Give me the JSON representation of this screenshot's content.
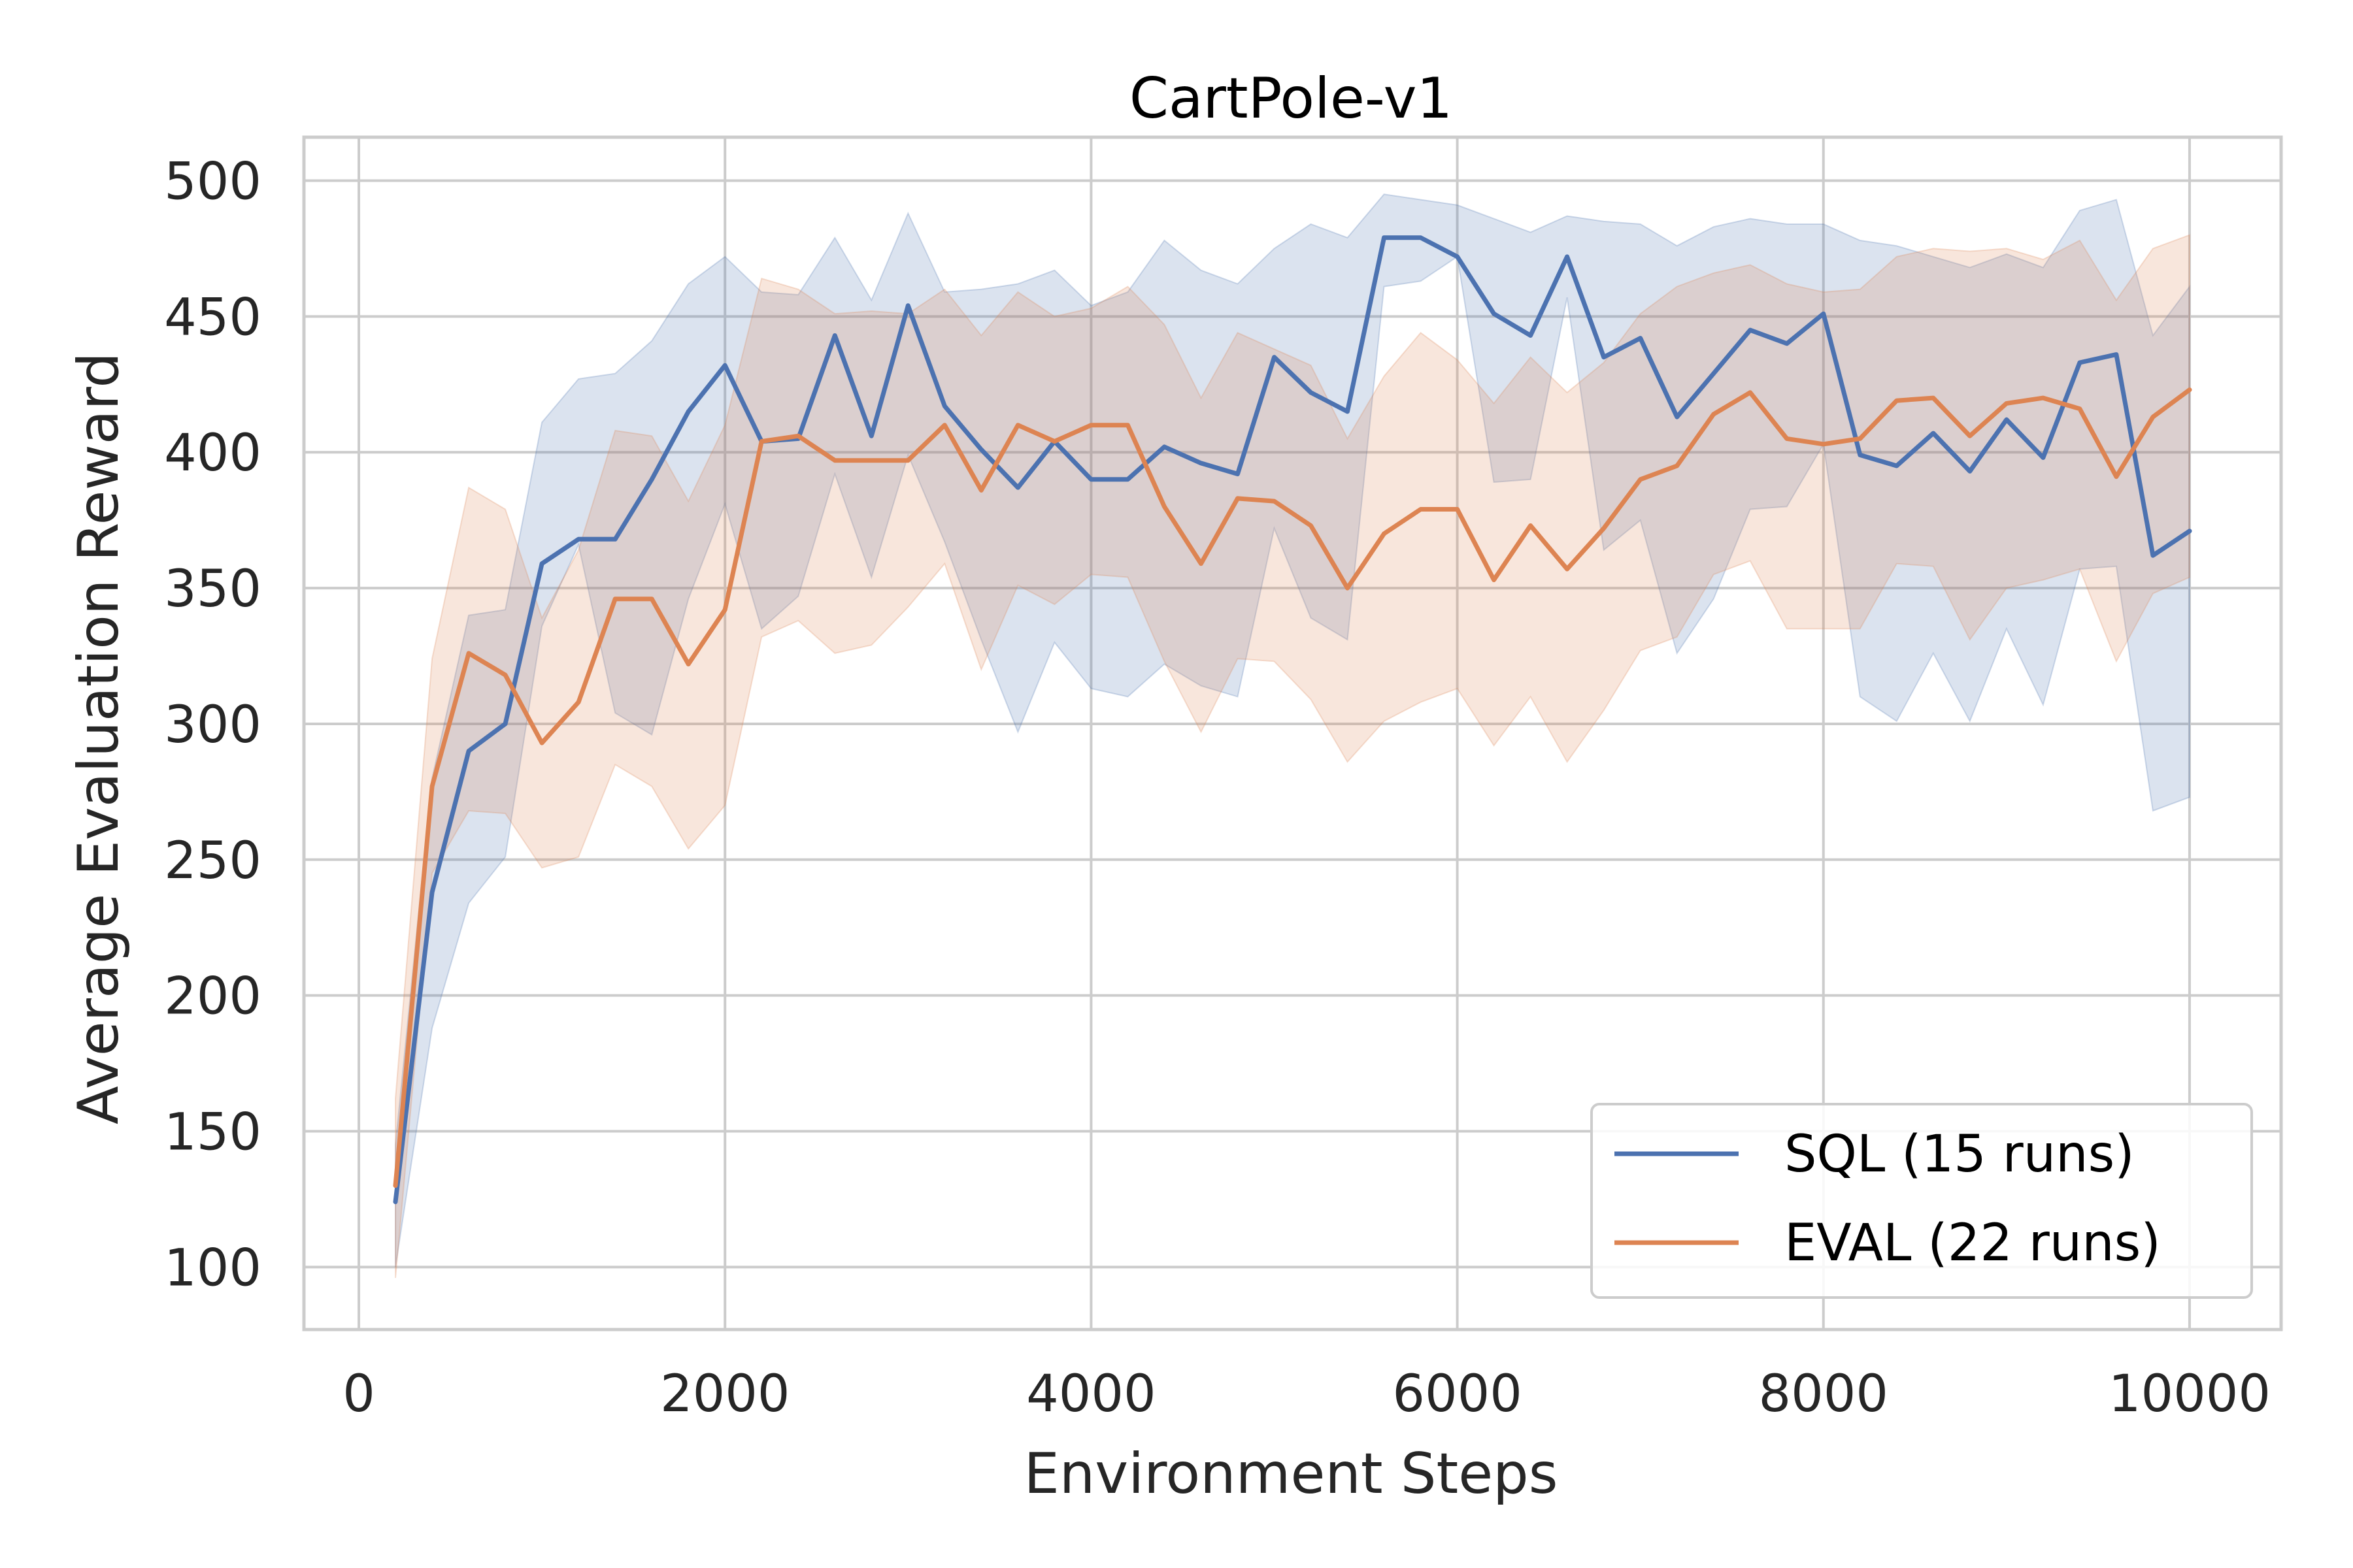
{
  "chart_data": {
    "type": "line",
    "title": "CartPole-v1",
    "xlabel": "Environment Steps",
    "ylabel": "Average Evaluation Reward",
    "xlim": [
      -300,
      10500
    ],
    "ylim": [
      77,
      516
    ],
    "xticks": [
      0,
      2000,
      4000,
      6000,
      8000,
      10000
    ],
    "yticks": [
      100,
      150,
      200,
      250,
      300,
      350,
      400,
      450,
      500
    ],
    "grid": true,
    "legend_position": "lower-right",
    "x": [
      200,
      400,
      600,
      800,
      1000,
      1200,
      1400,
      1600,
      1800,
      2000,
      2200,
      2400,
      2600,
      2800,
      3000,
      3200,
      3400,
      3600,
      3800,
      4000,
      4200,
      4400,
      4600,
      4800,
      5000,
      5200,
      5400,
      5600,
      5800,
      6000,
      6200,
      6400,
      6600,
      6800,
      7000,
      7200,
      7400,
      7600,
      7800,
      8000,
      8200,
      8400,
      8600,
      8800,
      9000,
      9200,
      9400,
      9600,
      9800,
      10000
    ],
    "series": [
      {
        "name": "SQL (15 runs)",
        "color": "#4c72b0",
        "values": [
          124,
          238,
          290,
          300,
          359,
          368,
          368,
          390,
          415,
          432,
          404,
          405,
          443,
          406,
          454,
          417,
          401,
          387,
          404,
          390,
          390,
          402,
          396,
          392,
          435,
          422,
          415,
          479,
          479,
          472,
          451,
          443,
          472,
          435,
          442,
          413,
          429,
          445,
          440,
          451,
          399,
          395,
          407,
          393,
          412,
          398,
          433,
          436,
          362,
          371
        ],
        "lower": [
          100,
          188,
          234,
          251,
          336,
          366,
          304,
          296,
          346,
          381,
          335,
          347,
          392,
          354,
          399,
          367,
          331,
          297,
          330,
          313,
          310,
          322,
          314,
          310,
          372,
          339,
          331,
          461,
          463,
          472,
          389,
          390,
          457,
          364,
          375,
          326,
          346,
          379,
          380,
          403,
          310,
          301,
          326,
          301,
          335,
          307,
          357,
          358,
          268,
          273
        ],
        "upper": [
          145,
          280,
          340,
          342,
          411,
          427,
          429,
          441,
          462,
          472,
          459,
          458,
          479,
          456,
          488,
          459,
          460,
          462,
          467,
          454,
          459,
          478,
          467,
          462,
          475,
          484,
          479,
          495,
          493,
          491,
          486,
          481,
          487,
          485,
          484,
          476,
          483,
          486,
          484,
          484,
          478,
          476,
          472,
          468,
          473,
          468,
          489,
          493,
          443,
          461
        ]
      },
      {
        "name": "EVAL (22 runs)",
        "color": "#dd8452",
        "values": [
          130,
          277,
          326,
          318,
          293,
          308,
          346,
          346,
          322,
          342,
          404,
          406,
          397,
          397,
          397,
          410,
          386,
          410,
          404,
          410,
          410,
          380,
          359,
          383,
          382,
          373,
          350,
          370,
          379,
          379,
          353,
          373,
          357,
          372,
          390,
          395,
          414,
          422,
          405,
          403,
          405,
          419,
          420,
          406,
          418,
          420,
          416,
          391,
          413,
          423
        ],
        "lower": [
          96,
          245,
          268,
          267,
          247,
          251,
          285,
          277,
          254,
          270,
          332,
          338,
          326,
          329,
          343,
          359,
          320,
          351,
          344,
          355,
          354,
          323,
          297,
          324,
          323,
          309,
          286,
          301,
          308,
          313,
          292,
          310,
          286,
          305,
          327,
          332,
          355,
          360,
          335,
          335,
          335,
          359,
          358,
          331,
          350,
          353,
          357,
          323,
          348,
          354
        ],
        "upper": [
          162,
          324,
          387,
          379,
          339,
          364,
          408,
          406,
          382,
          410,
          464,
          460,
          451,
          452,
          451,
          460,
          443,
          459,
          450,
          453,
          461,
          447,
          420,
          444,
          438,
          432,
          405,
          428,
          444,
          434,
          418,
          435,
          422,
          433,
          451,
          461,
          466,
          469,
          462,
          459,
          460,
          472,
          475,
          474,
          475,
          471,
          478,
          456,
          475,
          480
        ]
      }
    ]
  }
}
